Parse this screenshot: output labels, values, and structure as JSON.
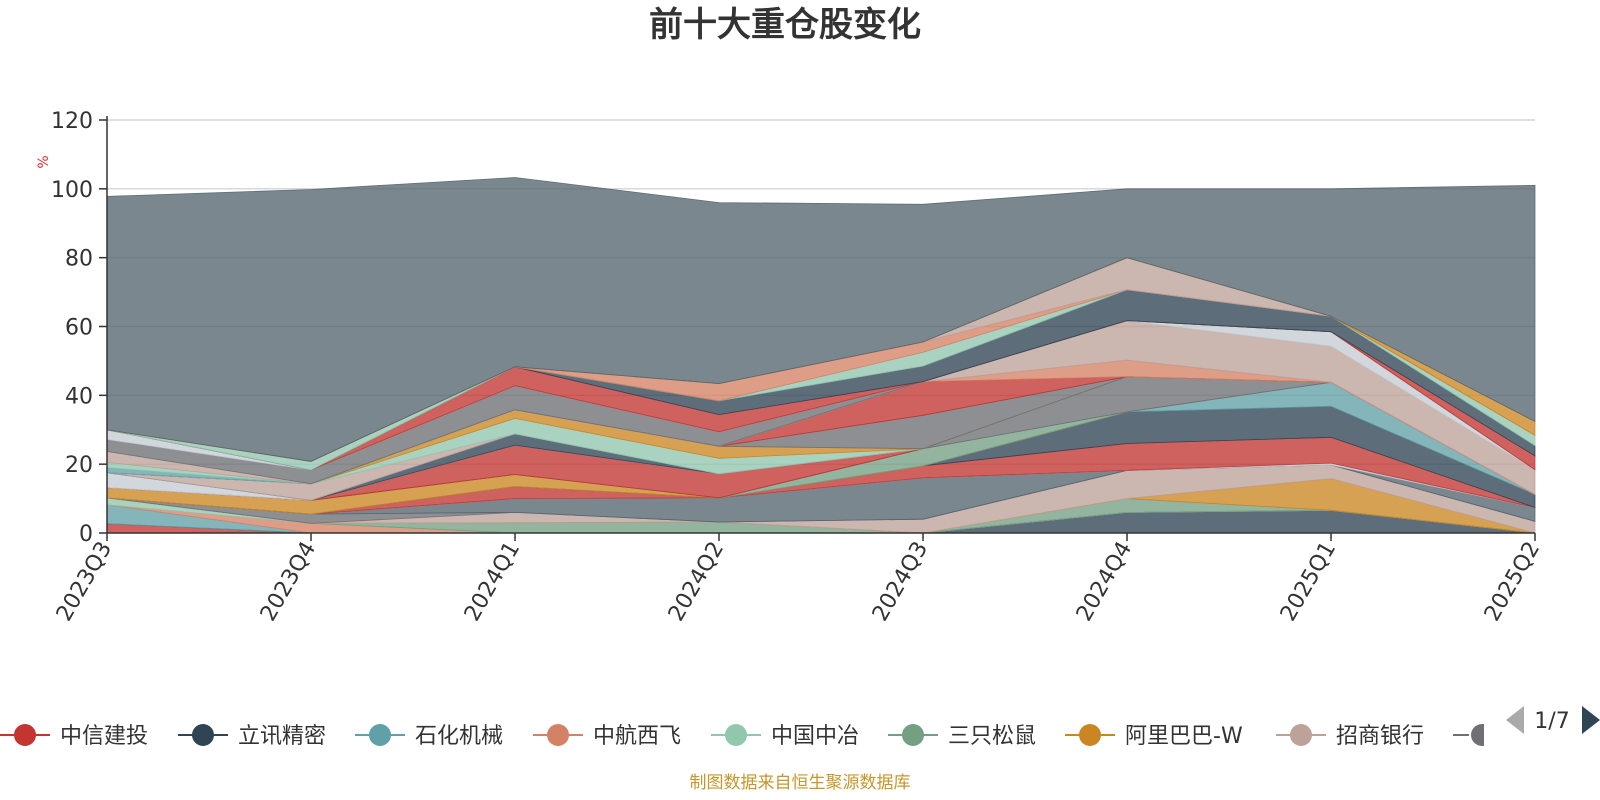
{
  "chart_data": {
    "type": "area",
    "title": "前十大重仓股变化",
    "ylabel": "%",
    "ylim": [
      0,
      120
    ],
    "yticks": [
      0,
      20,
      40,
      60,
      80,
      100,
      120
    ],
    "categories": [
      "2023Q3",
      "2023Q4",
      "2024Q1",
      "2024Q2",
      "2024Q3",
      "2024Q4",
      "2025Q1",
      "2025Q2"
    ],
    "series_stacking": "stacked",
    "series": [
      {
        "name": "中信建投",
        "color": "#c23531",
        "values": [
          2.7,
          0,
          0,
          0,
          0,
          0,
          0,
          0
        ]
      },
      {
        "name": "立讯精密",
        "color": "#2f4554",
        "values": [
          0,
          0,
          0,
          0,
          0,
          6,
          6.6,
          0
        ]
      },
      {
        "name": "石化机械",
        "color": "#61a0a8",
        "values": [
          5.5,
          0,
          0,
          0,
          0,
          0,
          0,
          0
        ]
      },
      {
        "name": "中航西飞",
        "color": "#d48265",
        "values": [
          0,
          2.8,
          0,
          0,
          0,
          0,
          0,
          0
        ]
      },
      {
        "name": "中国中冶",
        "color": "#91c7ae",
        "values": [
          2,
          0,
          0,
          0,
          0,
          0,
          0,
          0
        ]
      },
      {
        "name": "三只松鼠",
        "color": "#749f83",
        "values": [
          0,
          0,
          3,
          3.2,
          0,
          4,
          0,
          0
        ]
      },
      {
        "name": "阿里巴巴-W",
        "color": "#ca8622",
        "values": [
          0,
          0,
          0,
          0,
          0,
          0,
          9.2,
          0
        ]
      },
      {
        "name": "招商银行",
        "color": "#bda29a",
        "values": [
          0,
          0,
          3,
          0,
          4,
          8.2,
          4,
          3.4
        ]
      },
      {
        "name": "",
        "color": "#6e7074",
        "values": [
          0,
          2.7,
          0,
          0,
          0,
          0,
          0,
          0
        ]
      },
      {
        "name": "",
        "color": "#546570",
        "values": [
          0,
          0,
          4,
          7,
          12,
          0,
          0,
          4
        ]
      },
      {
        "name": "",
        "color": "#c4ccd3",
        "values": [
          0,
          0,
          0,
          0,
          0,
          0,
          0.5,
          0
        ]
      },
      {
        "name": "",
        "color": "#c23531",
        "values": [
          0,
          0,
          3.5,
          0,
          3.5,
          7.8,
          7.5,
          0
        ]
      },
      {
        "name": "",
        "color": "#2f4554",
        "values": [
          0,
          0,
          0,
          0,
          0,
          9.2,
          9,
          3.8
        ]
      },
      {
        "name": "",
        "color": "#61a0a8",
        "values": [
          0,
          0,
          0,
          0,
          0,
          0,
          7,
          0
        ]
      },
      {
        "name": "",
        "color": "#ca8622",
        "values": [
          3,
          4,
          3.5,
          0,
          0,
          0,
          0,
          0
        ]
      },
      {
        "name": "",
        "color": "#749f83",
        "values": [
          0,
          0,
          0,
          0,
          5,
          0,
          0,
          0
        ]
      },
      {
        "name": "",
        "color": "#6e7074",
        "values": [
          0,
          0,
          0,
          0,
          0,
          10.2,
          0,
          0
        ]
      },
      {
        "name": "",
        "color": "#c23531",
        "values": [
          0,
          0,
          8.5,
          7,
          0,
          0,
          0,
          0
        ]
      },
      {
        "name": "",
        "color": "#c4ccd3",
        "values": [
          4.3,
          0,
          0,
          0,
          0,
          0,
          0,
          0
        ]
      },
      {
        "name": "",
        "color": "#2f4554",
        "values": [
          0,
          0,
          3.3,
          0,
          0,
          0,
          0,
          0
        ]
      },
      {
        "name": "",
        "color": "#bda29a",
        "values": [
          0,
          4.8,
          0,
          0,
          0,
          0,
          0,
          0
        ]
      },
      {
        "name": "",
        "color": "#91c7ae",
        "values": [
          0,
          0,
          4.5,
          4.5,
          0,
          0,
          0,
          0
        ]
      },
      {
        "name": "",
        "color": "#ca8622",
        "values": [
          0,
          0,
          2.5,
          3.5,
          0,
          0,
          0,
          0
        ]
      },
      {
        "name": "",
        "color": "#6e7074",
        "values": [
          0,
          0,
          0,
          0,
          9.7,
          0,
          0,
          0
        ]
      },
      {
        "name": "",
        "color": "#c23531",
        "values": [
          0,
          0,
          0,
          0,
          9.8,
          0,
          0,
          0
        ]
      },
      {
        "name": "",
        "color": "#d48265",
        "values": [
          0,
          0,
          0,
          0,
          0,
          4.8,
          0,
          0
        ]
      },
      {
        "name": "",
        "color": "#bda29a",
        "values": [
          0,
          0,
          0,
          0,
          0,
          11.5,
          10.5,
          7.2
        ]
      },
      {
        "name": "",
        "color": "#c4ccd3",
        "values": [
          0,
          0,
          0,
          0,
          0,
          0,
          4.2,
          0
        ]
      },
      {
        "name": "",
        "color": "#61a0a8",
        "values": [
          1.5,
          0,
          0,
          0,
          0,
          0,
          0,
          0
        ]
      },
      {
        "name": "",
        "color": "#91c7ae",
        "values": [
          1.5,
          0,
          0,
          0,
          0,
          0,
          0,
          0
        ]
      },
      {
        "name": "",
        "color": "#bda29a",
        "values": [
          3.2,
          0,
          0,
          0,
          0,
          0,
          0,
          0
        ]
      },
      {
        "name": "",
        "color": "#6e7074",
        "values": [
          3.5,
          4,
          7,
          4.2,
          0,
          0,
          0,
          0
        ]
      },
      {
        "name": "",
        "color": "#c4ccd3",
        "values": [
          2.8,
          0,
          0,
          0,
          0,
          0,
          0,
          0
        ]
      },
      {
        "name": "",
        "color": "#c23531",
        "values": [
          0,
          0,
          5.5,
          5,
          0,
          0,
          0,
          4
        ]
      },
      {
        "name": "",
        "color": "#2f4554",
        "values": [
          0,
          0,
          0,
          4,
          4.5,
          9,
          4.5,
          3
        ]
      },
      {
        "name": "",
        "color": "#91c7ae",
        "values": [
          0,
          2.5,
          0,
          0,
          4,
          0,
          0,
          3
        ]
      },
      {
        "name": "",
        "color": "#d48265",
        "values": [
          0,
          0,
          0,
          5,
          3,
          0,
          0,
          0
        ]
      },
      {
        "name": "",
        "color": "#bda29a",
        "values": [
          0,
          0,
          0,
          0,
          0,
          9.3,
          0,
          0
        ]
      },
      {
        "name": "",
        "color": "#ca8622",
        "values": [
          0,
          0,
          0,
          0,
          0,
          0,
          0,
          4
        ]
      },
      {
        "name": "",
        "color": "#546570",
        "values": [
          67.8,
          79,
          55,
          52.6,
          40,
          20,
          37,
          68.6
        ]
      }
    ],
    "grid": true,
    "legend_position": "bottom"
  },
  "legend": {
    "items": [
      {
        "label": "中信建投",
        "color": "#c23531"
      },
      {
        "label": "立讯精密",
        "color": "#2f4554"
      },
      {
        "label": "石化机械",
        "color": "#61a0a8"
      },
      {
        "label": "中航西飞",
        "color": "#d48265"
      },
      {
        "label": "中国中冶",
        "color": "#91c7ae"
      },
      {
        "label": "三只松鼠",
        "color": "#749f83"
      },
      {
        "label": "阿里巴巴-W",
        "color": "#ca8622"
      },
      {
        "label": "招商银行",
        "color": "#bda29a"
      }
    ],
    "overflow_color": "#6e7074",
    "pager_text": "1/7"
  },
  "source_note": "制图数据来自恒生聚源数据库"
}
